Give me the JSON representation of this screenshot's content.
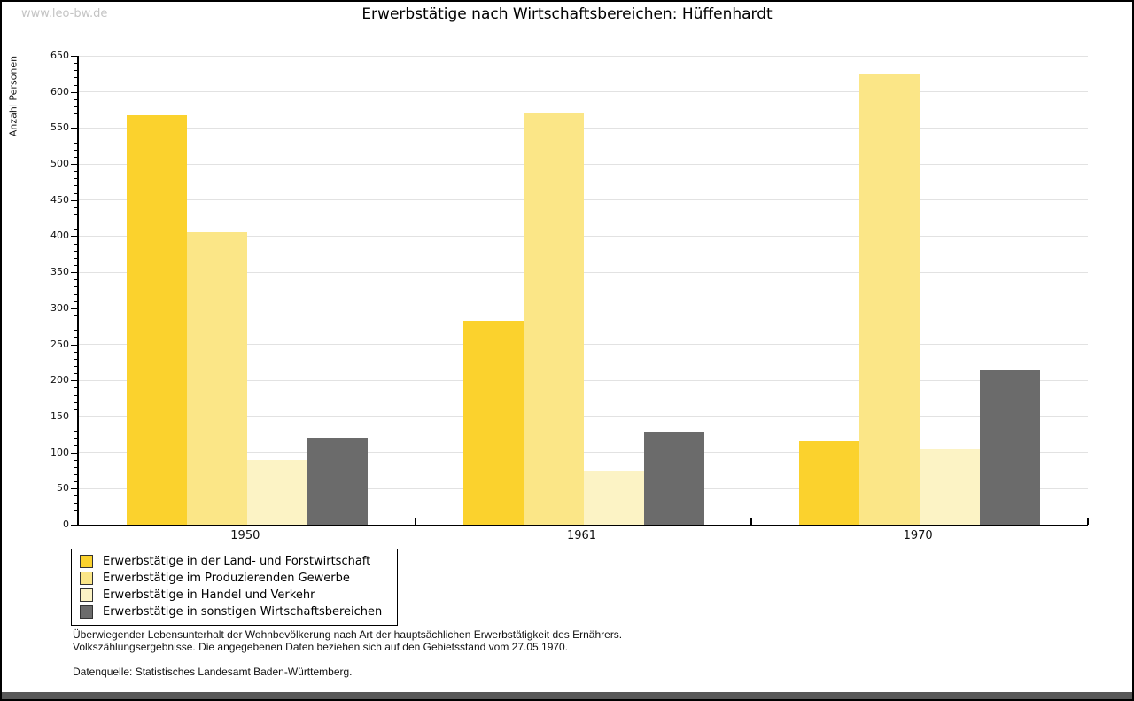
{
  "watermark": "www.leo-bw.de",
  "title": "Erwerbstätige nach Wirtschaftsbereichen: Hüffenhardt",
  "footnotes": [
    "Überwiegender Lebensunterhalt der Wohnbevölkerung nach Art der hauptsächlichen Erwerbstätigkeit des Ernährers.",
    "Volkszählungsergebnisse. Die angegebenen Daten beziehen sich auf den Gebietsstand vom 27.05.1970."
  ],
  "source": "Datenquelle: Statistisches Landesamt Baden-Württemberg.",
  "chart_data": {
    "type": "bar",
    "title": "Erwerbstätige nach Wirtschaftsbereichen: Hüffenhardt",
    "xlabel": "",
    "ylabel": "Anzahl Personen",
    "ylim": [
      0,
      650
    ],
    "y_major_step": 50,
    "y_minor_step": 10,
    "grid": true,
    "legend_position": "bottom-left",
    "categories": [
      "1950",
      "1961",
      "1970"
    ],
    "series": [
      {
        "name": "Erwerbstätige in der Land- und Forstwirtschaft",
        "color": "#FBD22D",
        "values": [
          568,
          283,
          116
        ]
      },
      {
        "name": "Erwerbstätige im Produzierenden Gewerbe",
        "color": "#FBE687",
        "values": [
          406,
          570,
          626
        ]
      },
      {
        "name": "Erwerbstätige in Handel und Verkehr",
        "color": "#FCF3C5",
        "values": [
          90,
          74,
          104
        ]
      },
      {
        "name": "Erwerbstätige in sonstigen Wirtschaftsbereichen",
        "color": "#6B6B6B",
        "values": [
          120,
          128,
          214
        ]
      }
    ]
  },
  "colors": {
    "gridline": "#e2e2e2",
    "axis": "#000000",
    "watermark": "#c4c4c4",
    "bottom_strip": "#585858"
  }
}
